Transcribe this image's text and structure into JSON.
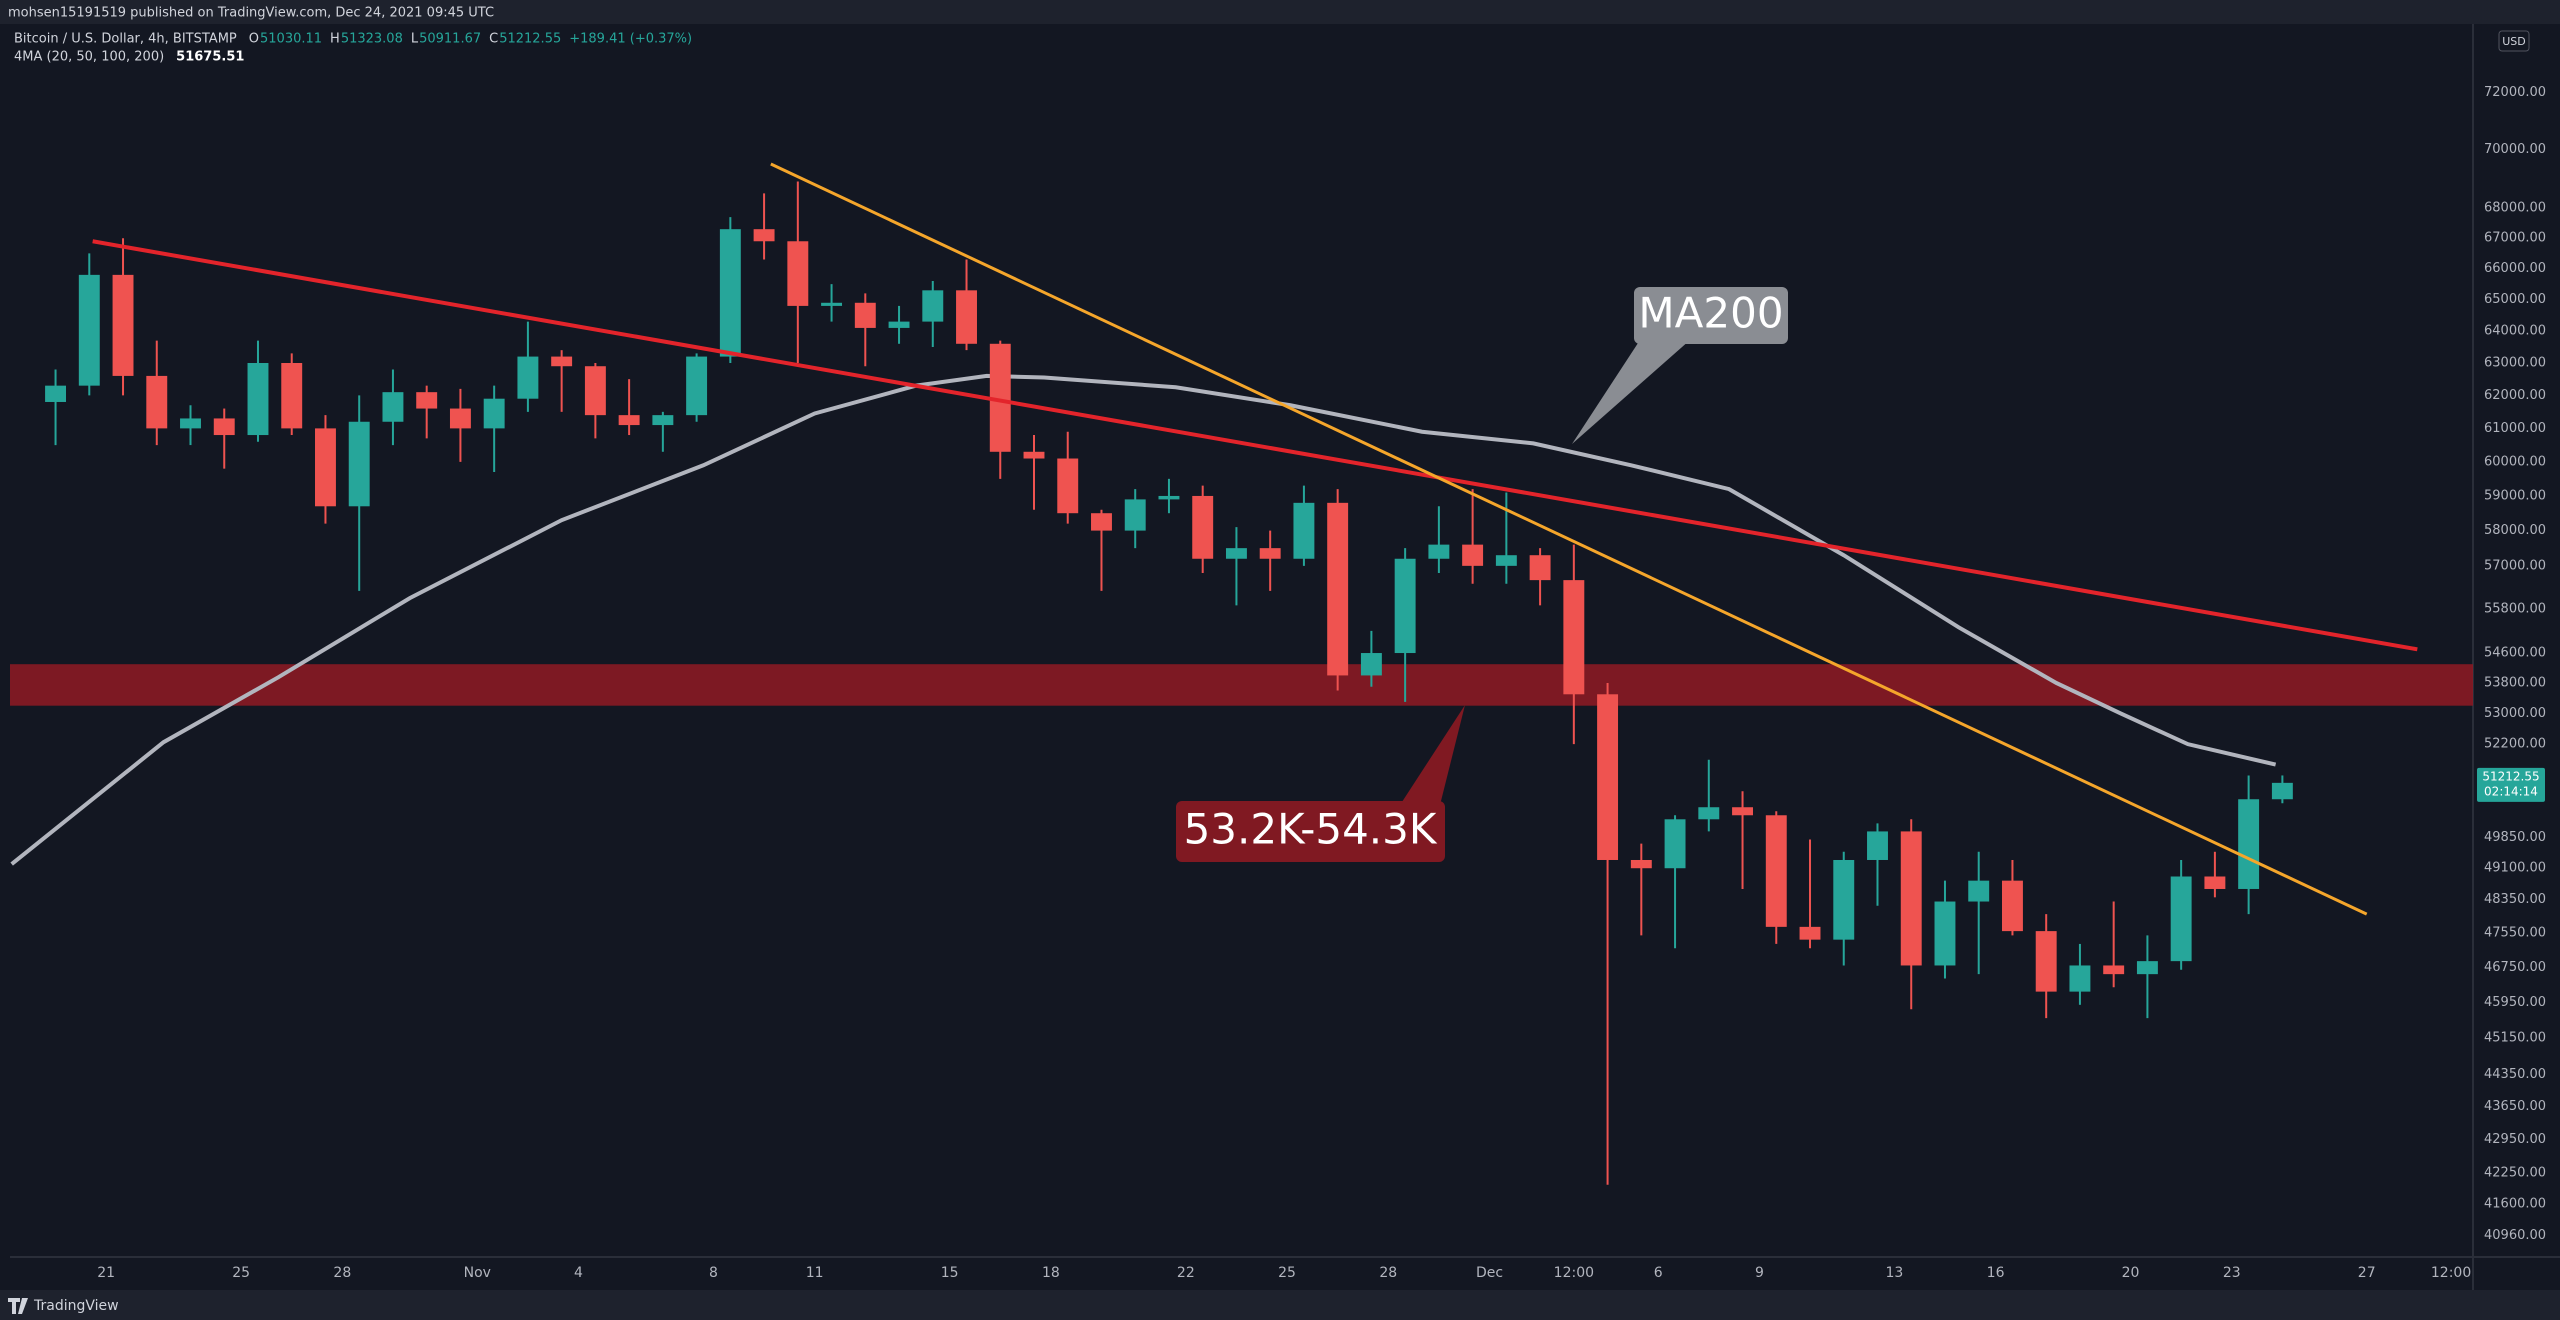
{
  "header": {
    "publisher": "mohsen15191519 published on TradingView.com, Dec 24, 2021 09:45 UTC"
  },
  "legend": {
    "symbol": "Bitcoin / U.S. Dollar, 4h, BITSTAMP",
    "ohlc": [
      {
        "label": "O",
        "value": "51030.11"
      },
      {
        "label": "H",
        "value": "51323.08"
      },
      {
        "label": "L",
        "value": "50911.67"
      },
      {
        "label": "C",
        "value": "51212.55"
      }
    ],
    "change": "+189.41 (+0.37%)",
    "indicator": "4MA (20, 50, 100, 200)",
    "indicator_value": "51675.51"
  },
  "chart_data": {
    "type": "candlestick",
    "log_scale": true,
    "grid": false,
    "currency": "USD",
    "up_color": "#26a69a",
    "down_color": "#ef5350",
    "xlim": [
      -2.85,
      70.15
    ],
    "ylim": [
      40530,
      74470
    ],
    "xticks": [
      {
        "value": 0,
        "label": "21"
      },
      {
        "value": 4,
        "label": "25"
      },
      {
        "value": 7,
        "label": "28"
      },
      {
        "value": 11,
        "label": "Nov"
      },
      {
        "value": 14,
        "label": "4"
      },
      {
        "value": 18,
        "label": "8"
      },
      {
        "value": 21,
        "label": "11"
      },
      {
        "value": 25,
        "label": "15"
      },
      {
        "value": 28,
        "label": "18"
      },
      {
        "value": 32,
        "label": "22"
      },
      {
        "value": 35,
        "label": "25"
      },
      {
        "value": 38,
        "label": "28"
      },
      {
        "value": 41,
        "label": "Dec"
      },
      {
        "value": 43.5,
        "label": "12:00"
      },
      {
        "value": 46,
        "label": "6"
      },
      {
        "value": 49,
        "label": "9"
      },
      {
        "value": 53,
        "label": "13"
      },
      {
        "value": 56,
        "label": "16"
      },
      {
        "value": 60,
        "label": "20"
      },
      {
        "value": 63,
        "label": "23"
      },
      {
        "value": 67,
        "label": "27"
      },
      {
        "value": 69.5,
        "label": "12:00"
      }
    ],
    "yticks": [
      {
        "value": 72000,
        "label": "72000.00"
      },
      {
        "value": 70000,
        "label": "70000.00"
      },
      {
        "value": 68000,
        "label": "68000.00"
      },
      {
        "value": 67000,
        "label": "67000.00"
      },
      {
        "value": 66000,
        "label": "66000.00"
      },
      {
        "value": 65000,
        "label": "65000.00"
      },
      {
        "value": 64000,
        "label": "64000.00"
      },
      {
        "value": 63000,
        "label": "63000.00"
      },
      {
        "value": 62000,
        "label": "62000.00"
      },
      {
        "value": 61000,
        "label": "61000.00"
      },
      {
        "value": 60000,
        "label": "60000.00"
      },
      {
        "value": 59000,
        "label": "59000.00"
      },
      {
        "value": 58000,
        "label": "58000.00"
      },
      {
        "value": 57000,
        "label": "57000.00"
      },
      {
        "value": 55800,
        "label": "55800.00"
      },
      {
        "value": 54600,
        "label": "54600.00"
      },
      {
        "value": 53800,
        "label": "53800.00"
      },
      {
        "value": 53000,
        "label": "53000.00"
      },
      {
        "value": 52200,
        "label": "52200.00"
      },
      {
        "value": 49850,
        "label": "49850.00"
      },
      {
        "value": 49100,
        "label": "49100.00"
      },
      {
        "value": 48350,
        "label": "48350.00"
      },
      {
        "value": 47550,
        "label": "47550.00"
      },
      {
        "value": 46750,
        "label": "46750.00"
      },
      {
        "value": 45950,
        "label": "45950.00"
      },
      {
        "value": 45150,
        "label": "45150.00"
      },
      {
        "value": 44350,
        "label": "44350.00"
      },
      {
        "value": 43650,
        "label": "43650.00"
      },
      {
        "value": 42950,
        "label": "42950.00"
      },
      {
        "value": 42250,
        "label": "42250.00"
      },
      {
        "value": 41600,
        "label": "41600.00"
      },
      {
        "value": 40960,
        "label": "40960.00"
      }
    ],
    "x": [
      -2,
      -1,
      0,
      1,
      2,
      3,
      4,
      5,
      6,
      7,
      8,
      9,
      10,
      11,
      12,
      13,
      14,
      15,
      16,
      17,
      18,
      19,
      20,
      21,
      22,
      23,
      24,
      25,
      26,
      27,
      28,
      29,
      30,
      31,
      32,
      33,
      34,
      35,
      36,
      37,
      38,
      39,
      40,
      41,
      42,
      43,
      44,
      45,
      46,
      47,
      48,
      49,
      50,
      51,
      52,
      53,
      54,
      55,
      56,
      57,
      58,
      59,
      60,
      61,
      62,
      63,
      64
    ],
    "open": [
      61800,
      62300,
      65800,
      62600,
      61000,
      61300,
      60800,
      63000,
      61000,
      58700,
      61200,
      62100,
      61600,
      61000,
      61900,
      63200,
      62900,
      61400,
      61100,
      61400,
      63200,
      67300,
      66900,
      64800,
      64900,
      64100,
      64300,
      65300,
      63600,
      60300,
      60100,
      58500,
      58000,
      58900,
      59000,
      57200,
      57500,
      57200,
      58800,
      54000,
      54600,
      57200,
      57600,
      57000,
      57300,
      56600,
      53500,
      49300,
      49100,
      50300,
      50600,
      50400,
      47700,
      47400,
      49300,
      50000,
      46800,
      48300,
      48800,
      47600,
      46200,
      46800,
      46600,
      46900,
      48900,
      48600,
      50800
    ],
    "high": [
      62800,
      66500,
      67000,
      63700,
      61700,
      61600,
      63700,
      63300,
      61400,
      62000,
      62800,
      62300,
      62200,
      62300,
      64300,
      63400,
      63000,
      62500,
      61500,
      63300,
      67700,
      68500,
      68900,
      65500,
      65200,
      64800,
      65600,
      66300,
      63700,
      60800,
      60900,
      58600,
      59200,
      59500,
      59300,
      58100,
      58000,
      59300,
      59200,
      55200,
      57500,
      58700,
      59200,
      59100,
      57500,
      57600,
      53800,
      49700,
      50400,
      51800,
      51000,
      50500,
      49800,
      49500,
      50200,
      50300,
      48800,
      49500,
      49300,
      48000,
      47300,
      48300,
      47500,
      49300,
      49500,
      51400,
      51400
    ],
    "low": [
      60500,
      62000,
      62000,
      60500,
      60500,
      59800,
      60600,
      60800,
      58200,
      56300,
      60500,
      60700,
      60000,
      59700,
      61500,
      61500,
      60700,
      60800,
      60300,
      61200,
      63000,
      66300,
      63000,
      64300,
      62900,
      63600,
      63500,
      63400,
      59500,
      58600,
      58200,
      56300,
      57500,
      58500,
      56800,
      55900,
      56300,
      57000,
      53600,
      53700,
      53300,
      56800,
      56500,
      56500,
      55900,
      52200,
      42000,
      47500,
      47200,
      50000,
      48600,
      47300,
      47200,
      46800,
      48200,
      45800,
      46500,
      46600,
      47500,
      45600,
      45900,
      46300,
      45600,
      46700,
      48400,
      48000,
      50700
    ],
    "close": [
      62300,
      65800,
      62600,
      61000,
      61300,
      60800,
      63000,
      61000,
      58700,
      61200,
      62100,
      61600,
      61000,
      61900,
      63200,
      62900,
      61400,
      61100,
      61400,
      63200,
      67300,
      66900,
      64800,
      64900,
      64100,
      64300,
      65300,
      63600,
      60300,
      60100,
      58500,
      58000,
      58900,
      59000,
      57200,
      57500,
      57200,
      58800,
      54000,
      54600,
      57200,
      57600,
      57000,
      57300,
      56600,
      53500,
      49300,
      49100,
      50300,
      50600,
      50400,
      47700,
      47400,
      49300,
      50000,
      46800,
      48300,
      48800,
      47600,
      46200,
      46800,
      46600,
      46900,
      48900,
      48600,
      50800,
      51212.55
    ],
    "last_price": 51212.55,
    "countdown": "02:14:14",
    "ma200": {
      "color": "#b2b5be",
      "x": [
        -2.8,
        1.7,
        5.1,
        9,
        13.5,
        17.7,
        21,
        24,
        26.1,
        27.8,
        31.7,
        35.1,
        39,
        42.3,
        45.2,
        48.1,
        51.5,
        54.9,
        57.8,
        59.7,
        61.7,
        64.3
      ],
      "values": [
        49200,
        52250,
        53950,
        56100,
        58300,
        59900,
        61450,
        62300,
        62600,
        62550,
        62250,
        61700,
        60900,
        60550,
        59900,
        59200,
        57300,
        55300,
        53800,
        53000,
        52200,
        51675.51
      ]
    },
    "trendlines": [
      {
        "color": "#e3242b",
        "x": [
          -0.4,
          68.5
        ],
        "values": [
          66900,
          54700
        ]
      },
      {
        "color": "#f5a62b",
        "x": [
          19.7,
          67
        ],
        "values": [
          69500,
          48000
        ]
      }
    ],
    "zone": {
      "color": "#8a1a24",
      "values": [
        53200,
        54300
      ]
    },
    "annotations": [
      "MA200",
      "53.2K-54.3K"
    ]
  },
  "footer": {
    "brand": "TradingView"
  }
}
